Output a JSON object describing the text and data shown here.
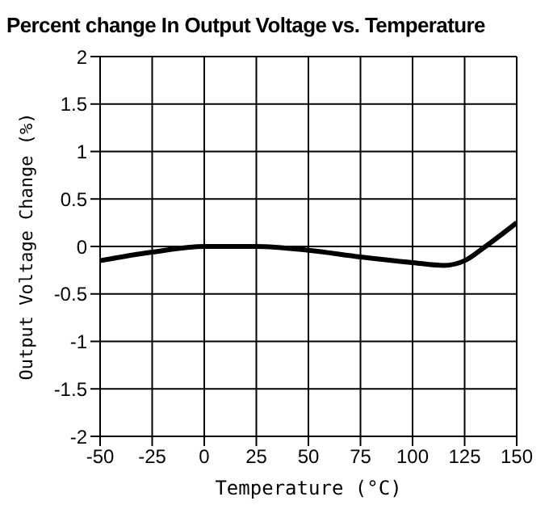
{
  "chart_data": {
    "type": "line",
    "title": "Percent change In Output Voltage vs. Temperature",
    "xlabel": "Temperature (°C)",
    "ylabel": "Output Voltage Change (%)",
    "x": [
      -50,
      -25,
      0,
      25,
      50,
      75,
      100,
      115,
      125,
      135,
      150
    ],
    "series": [
      {
        "color": "#000000",
        "values": [
          -0.15,
          -0.06,
          0,
          0,
          -0.04,
          -0.11,
          -0.17,
          -0.2,
          -0.15,
          0,
          0.25
        ]
      }
    ],
    "xlim": [
      -50,
      150
    ],
    "xticks": [
      -50,
      -25,
      0,
      25,
      50,
      75,
      100,
      125,
      150
    ],
    "ylim": [
      -2,
      2
    ],
    "yticks": [
      -2,
      -1.5,
      -1,
      -0.5,
      0,
      0.5,
      1,
      1.5,
      2
    ],
    "grid": true,
    "legend": false,
    "marker": "none",
    "line_style": "solid"
  }
}
